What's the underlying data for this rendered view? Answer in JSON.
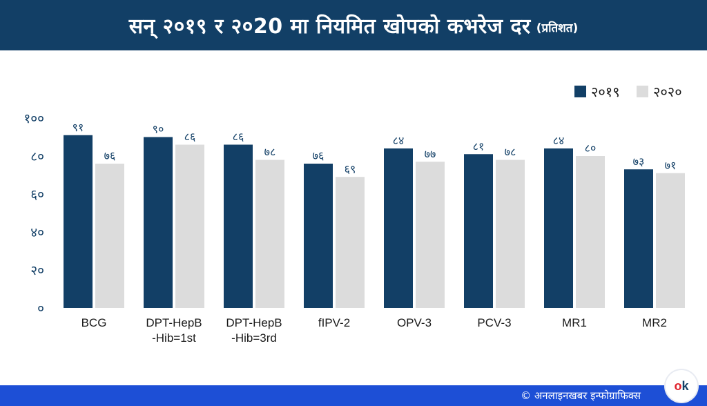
{
  "header": {
    "title": "सन् २०१९ र २०20 मा नियमित खोपको कभरेज दर",
    "subtitle": "(प्रतिशत)"
  },
  "footer": {
    "credit": "© अनलाइनखबर इन्फोग्राफिक्स",
    "logo_o": "o",
    "logo_k": "k"
  },
  "colors": {
    "header_bg": "#123f66",
    "footer_bg": "#1d4fd6",
    "series_2019": "#123f66",
    "series_2020": "#dcdcdc",
    "text": "#123f66"
  },
  "chart_data": {
    "type": "bar",
    "title": "सन् २०१९ र २०20 मा नियमित खोपको कभरेज दर (प्रतिशत)",
    "xlabel": "",
    "ylabel": "",
    "ylim": [
      0,
      100
    ],
    "yticks": [
      0,
      20,
      40,
      60,
      80,
      100
    ],
    "ytick_labels": [
      "०",
      "२०",
      "४०",
      "६०",
      "८०",
      "१००"
    ],
    "legend_position": "top-right",
    "grid": false,
    "categories": [
      [
        "BCG"
      ],
      [
        "DPT-HepB",
        "-Hib=1st"
      ],
      [
        "DPT-HepB",
        "-Hib=3rd"
      ],
      [
        "fIPV-2"
      ],
      [
        "OPV-3"
      ],
      [
        "PCV-3"
      ],
      [
        "MR1"
      ],
      [
        "MR2"
      ]
    ],
    "series": [
      {
        "name": "२०१९",
        "color": "#123f66",
        "values": [
          91,
          90,
          86,
          76,
          84,
          81,
          84,
          73
        ],
        "labels": [
          "९१",
          "९०",
          "८६",
          "७६",
          "८४",
          "८१",
          "८४",
          "७३"
        ]
      },
      {
        "name": "२०२०",
        "color": "#dcdcdc",
        "values": [
          76,
          86,
          78,
          69,
          77,
          78,
          80,
          71
        ],
        "labels": [
          "७६",
          "८६",
          "७८",
          "६९",
          "७७",
          "७८",
          "८०",
          "७१"
        ]
      }
    ]
  }
}
